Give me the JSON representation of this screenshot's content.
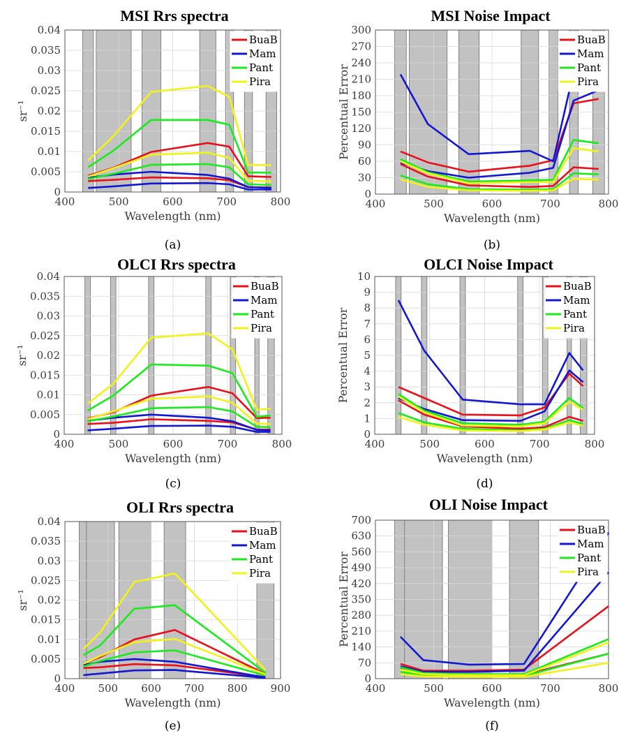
{
  "chart_data": [
    {
      "id": "a",
      "type": "line",
      "title": "MSI Rrs spectra",
      "panel_label": "(a)",
      "xlabel": "Wavelength (nm)",
      "ylabel": "sr⁻¹",
      "xlim": [
        400,
        800
      ],
      "ylim": [
        0,
        0.04
      ],
      "xticks": [
        400,
        500,
        600,
        700,
        800
      ],
      "yticks": [
        0,
        0.005,
        0.01,
        0.015,
        0.02,
        0.025,
        0.03,
        0.035,
        0.04
      ],
      "ytick_labels": [
        "0",
        "0.005",
        "0.01",
        "0.015",
        "0.02",
        "0.025",
        "0.03",
        "0.035",
        "0.04"
      ],
      "bands": [
        [
          433,
          453
        ],
        [
          458,
          523
        ],
        [
          543,
          578
        ],
        [
          650,
          680
        ],
        [
          698,
          713
        ],
        [
          733,
          748
        ],
        [
          773,
          793
        ]
      ],
      "legend": [
        "BuaB",
        "Mam",
        "Pant",
        "Pira"
      ],
      "x": [
        443,
        490,
        560,
        665,
        705,
        740,
        783
      ],
      "series": [
        {
          "name": "BuaB",
          "color": "#e8101a",
          "values": [
            0.004,
            0.006,
            0.0099,
            0.0121,
            0.0112,
            0.0039,
            0.0037
          ]
        },
        {
          "name": "BuaB",
          "color": "#e8101a",
          "values": [
            0.0027,
            0.003,
            0.0036,
            0.0034,
            0.0029,
            0.0012,
            0.0011
          ]
        },
        {
          "name": "Mam",
          "color": "#1218d0",
          "values": [
            0.0035,
            0.0043,
            0.005,
            0.0042,
            0.0033,
            0.0012,
            0.001
          ]
        },
        {
          "name": "Mam",
          "color": "#1218d0",
          "values": [
            0.001,
            0.0014,
            0.0021,
            0.0022,
            0.0019,
            0.0006,
            0.0006
          ]
        },
        {
          "name": "Pant",
          "color": "#1aeb1a",
          "values": [
            0.0061,
            0.0102,
            0.0178,
            0.0178,
            0.0166,
            0.0048,
            0.0048
          ]
        },
        {
          "name": "Pant",
          "color": "#1aeb1a",
          "values": [
            0.0032,
            0.0045,
            0.0067,
            0.0069,
            0.0061,
            0.0019,
            0.0017
          ]
        },
        {
          "name": "Pira",
          "color": "#f2f21a",
          "values": [
            0.0078,
            0.0138,
            0.0247,
            0.0262,
            0.0235,
            0.0067,
            0.0066
          ]
        },
        {
          "name": "Pira",
          "color": "#f2f21a",
          "values": [
            0.0038,
            0.0059,
            0.0092,
            0.0097,
            0.0084,
            0.0028,
            0.0026
          ]
        }
      ]
    },
    {
      "id": "b",
      "type": "line",
      "title": "MSI Noise Impact",
      "panel_label": "(b)",
      "xlabel": "Wavelength (nm)",
      "ylabel": "Percentual Error",
      "xlim": [
        400,
        800
      ],
      "ylim": [
        0,
        300
      ],
      "xticks": [
        400,
        500,
        600,
        700,
        800
      ],
      "yticks": [
        0,
        30,
        60,
        90,
        120,
        150,
        180,
        210,
        240,
        270,
        300
      ],
      "ytick_labels": [
        "0",
        "30",
        "60",
        "90",
        "120",
        "150",
        "180",
        "210",
        "240",
        "270",
        "300"
      ],
      "bands": [
        [
          433,
          453
        ],
        [
          458,
          523
        ],
        [
          543,
          578
        ],
        [
          650,
          680
        ],
        [
          698,
          713
        ],
        [
          733,
          748
        ],
        [
          773,
          793
        ]
      ],
      "legend": [
        "BuaB",
        "Mam",
        "Pant",
        "Pira"
      ],
      "x": [
        443,
        490,
        560,
        665,
        705,
        740,
        783
      ],
      "series": [
        {
          "name": "BuaB",
          "color": "#e8101a",
          "values": [
            78,
            58,
            41,
            52,
            62,
            166,
            174
          ]
        },
        {
          "name": "BuaB",
          "color": "#e8101a",
          "values": [
            55,
            32,
            16,
            13,
            15,
            49,
            46
          ]
        },
        {
          "name": "Mam",
          "color": "#1218d0",
          "values": [
            219,
            128,
            73,
            79,
            60,
            223,
            221
          ]
        },
        {
          "name": "Mam",
          "color": "#1218d0",
          "values": [
            58,
            42,
            30,
            39,
            48,
            171,
            190
          ]
        },
        {
          "name": "Pant",
          "color": "#1aeb1a",
          "values": [
            64,
            40,
            23,
            25,
            26,
            99,
            93
          ]
        },
        {
          "name": "Pant",
          "color": "#1aeb1a",
          "values": [
            34,
            18,
            9,
            8,
            9,
            38,
            36
          ]
        },
        {
          "name": "Pira",
          "color": "#f2f21a",
          "values": [
            60,
            38,
            20,
            22,
            22,
            84,
            78
          ]
        },
        {
          "name": "Pira",
          "color": "#f2f21a",
          "values": [
            27,
            13,
            7,
            6,
            7,
            28,
            26
          ]
        }
      ]
    },
    {
      "id": "c",
      "type": "line",
      "title": "OLCI Rrs spectra",
      "panel_label": "(c)",
      "xlabel": "Wavelength (nm)",
      "ylabel": "sr⁻¹",
      "xlim": [
        400,
        800
      ],
      "ylim": [
        0,
        0.04
      ],
      "xticks": [
        400,
        500,
        600,
        700,
        800
      ],
      "yticks": [
        0,
        0.005,
        0.01,
        0.015,
        0.02,
        0.025,
        0.03,
        0.035,
        0.04
      ],
      "ytick_labels": [
        "0",
        "0.005",
        "0.01",
        "0.015",
        "0.02",
        "0.025",
        "0.03",
        "0.035",
        "0.04"
      ],
      "bands": [
        [
          438,
          448
        ],
        [
          485,
          495
        ],
        [
          555,
          565
        ],
        [
          660,
          670
        ],
        [
          705,
          715
        ],
        [
          750,
          758
        ],
        [
          774,
          786
        ]
      ],
      "legend": [
        "BuaB",
        "Mam",
        "Pant",
        "Pira"
      ],
      "x": [
        443,
        490,
        560,
        665,
        709,
        754,
        779
      ],
      "series": [
        {
          "name": "BuaB",
          "color": "#e8101a",
          "values": [
            0.004,
            0.0056,
            0.0098,
            0.012,
            0.0104,
            0.0041,
            0.0042
          ]
        },
        {
          "name": "BuaB",
          "color": "#e8101a",
          "values": [
            0.0026,
            0.0029,
            0.0038,
            0.0034,
            0.003,
            0.0012,
            0.0012
          ]
        },
        {
          "name": "Mam",
          "color": "#1218d0",
          "values": [
            0.0034,
            0.0042,
            0.005,
            0.0042,
            0.0033,
            0.0011,
            0.001
          ]
        },
        {
          "name": "Mam",
          "color": "#1218d0",
          "values": [
            0.001,
            0.0014,
            0.0021,
            0.0022,
            0.0019,
            0.0006,
            0.0006
          ]
        },
        {
          "name": "Pant",
          "color": "#1aeb1a",
          "values": [
            0.006,
            0.0098,
            0.0177,
            0.0174,
            0.0155,
            0.0044,
            0.0048
          ]
        },
        {
          "name": "Pant",
          "color": "#1aeb1a",
          "values": [
            0.0033,
            0.0045,
            0.0066,
            0.0069,
            0.0058,
            0.0019,
            0.0018
          ]
        },
        {
          "name": "Pira",
          "color": "#f2f21a",
          "values": [
            0.0077,
            0.0128,
            0.0245,
            0.0256,
            0.0215,
            0.0062,
            0.0065
          ]
        },
        {
          "name": "Pira",
          "color": "#f2f21a",
          "values": [
            0.0038,
            0.0058,
            0.009,
            0.0096,
            0.008,
            0.0027,
            0.0026
          ]
        }
      ]
    },
    {
      "id": "d",
      "type": "line",
      "title": "OLCI Noise Impact",
      "panel_label": "(d)",
      "xlabel": "Wavelength (nm)",
      "ylabel": "Percentual Error",
      "xlim": [
        400,
        800
      ],
      "ylim": [
        0,
        10
      ],
      "xticks": [
        400,
        500,
        600,
        700,
        800
      ],
      "yticks": [
        0,
        1,
        2,
        3,
        4,
        5,
        6,
        7,
        8,
        9,
        10
      ],
      "ytick_labels": [
        "0",
        "1",
        "2",
        "3",
        "4",
        "5",
        "6",
        "7",
        "8",
        "9",
        "10"
      ],
      "bands": [
        [
          438,
          448
        ],
        [
          485,
          495
        ],
        [
          555,
          565
        ],
        [
          660,
          670
        ],
        [
          705,
          715
        ],
        [
          750,
          758
        ],
        [
          774,
          786
        ]
      ],
      "legend": [
        "BuaB",
        "Mam",
        "Pant",
        "Pira"
      ],
      "x": [
        443,
        490,
        560,
        665,
        709,
        754,
        779
      ],
      "series": [
        {
          "name": "BuaB",
          "color": "#e8101a",
          "values": [
            3.0,
            2.3,
            1.25,
            1.2,
            1.7,
            3.85,
            3.05
          ]
        },
        {
          "name": "BuaB",
          "color": "#e8101a",
          "values": [
            2.15,
            1.25,
            0.5,
            0.35,
            0.45,
            1.1,
            0.85
          ]
        },
        {
          "name": "Mam",
          "color": "#1218d0",
          "values": [
            8.5,
            5.3,
            2.2,
            1.9,
            1.9,
            5.15,
            4.05
          ]
        },
        {
          "name": "Mam",
          "color": "#1218d0",
          "values": [
            2.3,
            1.6,
            0.9,
            0.85,
            1.45,
            4.05,
            3.3
          ]
        },
        {
          "name": "Pant",
          "color": "#1aeb1a",
          "values": [
            2.55,
            1.5,
            0.7,
            0.6,
            0.8,
            2.3,
            1.65
          ]
        },
        {
          "name": "Pant",
          "color": "#1aeb1a",
          "values": [
            1.35,
            0.75,
            0.35,
            0.25,
            0.35,
            0.9,
            0.65
          ]
        },
        {
          "name": "Pira",
          "color": "#f2f21a",
          "values": [
            2.4,
            1.4,
            0.55,
            0.5,
            0.7,
            2.05,
            1.55
          ]
        },
        {
          "name": "Pira",
          "color": "#f2f21a",
          "values": [
            1.1,
            0.6,
            0.25,
            0.2,
            0.3,
            0.75,
            0.55
          ]
        }
      ]
    },
    {
      "id": "e",
      "type": "line",
      "title": "OLI Rrs spectra",
      "panel_label": "(e)",
      "xlabel": "Wavelength (nm)",
      "ylabel": "sr⁻¹",
      "xlim": [
        400,
        900
      ],
      "ylim": [
        0,
        0.04
      ],
      "xticks": [
        400,
        500,
        600,
        700,
        800,
        900
      ],
      "yticks": [
        0,
        0.005,
        0.01,
        0.015,
        0.02,
        0.025,
        0.03,
        0.035,
        0.04
      ],
      "ytick_labels": [
        "0",
        "0.005",
        "0.01",
        "0.015",
        "0.02",
        "0.025",
        "0.03",
        "0.035",
        "0.04"
      ],
      "bands": [
        [
          433,
          451
        ],
        [
          450,
          515
        ],
        [
          525,
          600
        ],
        [
          630,
          680
        ],
        [
          845,
          885
        ]
      ],
      "legend": [
        "BuaB",
        "Mam",
        "Pant",
        "Pira"
      ],
      "x": [
        443,
        482,
        561,
        655,
        865
      ],
      "series": [
        {
          "name": "BuaB",
          "color": "#e8101a",
          "values": [
            0.0039,
            0.0055,
            0.01,
            0.0124,
            0.0012
          ]
        },
        {
          "name": "BuaB",
          "color": "#e8101a",
          "values": [
            0.0027,
            0.0029,
            0.0037,
            0.0034,
            0.0004
          ]
        },
        {
          "name": "Mam",
          "color": "#1218d0",
          "values": [
            0.0035,
            0.0043,
            0.005,
            0.0043,
            0.0003
          ]
        },
        {
          "name": "Mam",
          "color": "#1218d0",
          "values": [
            0.0009,
            0.0013,
            0.0021,
            0.0022,
            0.0002
          ]
        },
        {
          "name": "Pant",
          "color": "#1aeb1a",
          "values": [
            0.006,
            0.0085,
            0.0178,
            0.0187,
            0.0015
          ]
        },
        {
          "name": "Pant",
          "color": "#1aeb1a",
          "values": [
            0.0031,
            0.0045,
            0.0067,
            0.0072,
            0.0008
          ]
        },
        {
          "name": "Pira",
          "color": "#f2f21a",
          "values": [
            0.0076,
            0.0118,
            0.0246,
            0.0268,
            0.0022
          ]
        },
        {
          "name": "Pira",
          "color": "#f2f21a",
          "values": [
            0.0038,
            0.0058,
            0.0093,
            0.0101,
            0.0011
          ]
        }
      ]
    },
    {
      "id": "f",
      "type": "line",
      "title": "OLI Noise Impact",
      "panel_label": "(f)",
      "xlabel": "Wavelength (nm)",
      "ylabel": "Percentual Error",
      "xlim": [
        400,
        800
      ],
      "ylim": [
        0,
        700
      ],
      "xticks": [
        400,
        500,
        600,
        700,
        800
      ],
      "yticks": [
        0,
        70,
        140,
        210,
        280,
        350,
        420,
        490,
        560,
        630,
        700
      ],
      "ytick_labels": [
        "0",
        "70",
        "140",
        "210",
        "280",
        "350",
        "420",
        "490",
        "560",
        "630",
        "700"
      ],
      "bands": [
        [
          433,
          451
        ],
        [
          450,
          515
        ],
        [
          525,
          600
        ],
        [
          630,
          680
        ]
      ],
      "legend": [
        "BuaB",
        "Mam",
        "Pant",
        "Pira"
      ],
      "x": [
        443,
        482,
        561,
        655,
        800
      ],
      "series": [
        {
          "name": "BuaB",
          "color": "#e8101a",
          "values": [
            65,
            35,
            35,
            40,
            320
          ]
        },
        {
          "name": "BuaB",
          "color": "#e8101a",
          "values": [
            45,
            22,
            18,
            17,
            110
          ]
        },
        {
          "name": "Mam",
          "color": "#1218d0",
          "values": [
            185,
            82,
            62,
            65,
            645
          ]
        },
        {
          "name": "Mam",
          "color": "#1218d0",
          "values": [
            55,
            30,
            30,
            35,
            470
          ]
        },
        {
          "name": "Pant",
          "color": "#1aeb1a",
          "values": [
            50,
            25,
            20,
            20,
            175
          ]
        },
        {
          "name": "Pant",
          "color": "#1aeb1a",
          "values": [
            30,
            15,
            12,
            12,
            110
          ]
        },
        {
          "name": "Pira",
          "color": "#f2f21a",
          "values": [
            40,
            20,
            15,
            15,
            160
          ]
        },
        {
          "name": "Pira",
          "color": "#f2f21a",
          "values": [
            20,
            10,
            8,
            8,
            70
          ]
        }
      ]
    }
  ]
}
